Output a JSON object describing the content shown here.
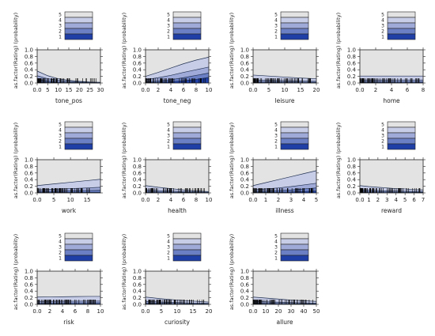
{
  "figure": {
    "ylabel": "as.factor(Rating) (probability)",
    "legend_levels": [
      "5",
      "4",
      "3",
      "2",
      "1"
    ],
    "colors": {
      "level1": "#1f3fa6",
      "level2": "#6a7fc4",
      "level3": "#9faad8",
      "level4": "#c8cde7",
      "level5": "#e3e3e3",
      "panel_bg": "#e3e3e3",
      "curve": "#203050",
      "rug": "#000000"
    }
  },
  "chart_data": [
    {
      "type": "area",
      "title": "",
      "xlabel": "tone_pos",
      "ylabel": "as.factor(Rating) (probability)",
      "xlim": [
        0,
        30
      ],
      "ylim": [
        0,
        1
      ],
      "xticks": [
        0,
        5,
        10,
        15,
        20,
        25,
        30
      ],
      "yticks": [
        0.0,
        0.2,
        0.4,
        0.6,
        0.8,
        1.0
      ],
      "x": [
        0,
        5,
        10,
        15,
        20,
        25,
        30
      ],
      "series": [
        {
          "values": [
            0.03,
            0.02,
            0.01,
            0.005,
            0.003,
            0.002,
            0.0
          ]
        },
        {
          "values": [
            0.1,
            0.06,
            0.03,
            0.02,
            0.015,
            0.01,
            0.005
          ]
        },
        {
          "values": [
            0.22,
            0.13,
            0.08,
            0.05,
            0.03,
            0.02,
            0.01
          ]
        },
        {
          "values": [
            0.36,
            0.22,
            0.13,
            0.08,
            0.05,
            0.03,
            0.02
          ]
        }
      ],
      "rug_range": [
        0,
        30
      ]
    },
    {
      "type": "area",
      "title": "",
      "xlabel": "tone_neg",
      "ylabel": "as.factor(Rating) (probability)",
      "xlim": [
        0,
        10
      ],
      "ylim": [
        0,
        1
      ],
      "xticks": [
        0,
        2,
        4,
        6,
        8,
        10
      ],
      "yticks": [
        0.0,
        0.2,
        0.4,
        0.6,
        0.8,
        1.0
      ],
      "x": [
        0,
        2,
        4,
        6,
        8,
        10
      ],
      "series": [
        {
          "values": [
            0.01,
            0.02,
            0.04,
            0.07,
            0.11,
            0.17
          ]
        },
        {
          "values": [
            0.03,
            0.06,
            0.1,
            0.16,
            0.23,
            0.3
          ]
        },
        {
          "values": [
            0.1,
            0.16,
            0.23,
            0.32,
            0.4,
            0.48
          ]
        },
        {
          "values": [
            0.2,
            0.32,
            0.45,
            0.58,
            0.69,
            0.78
          ]
        }
      ],
      "rug_range": [
        0,
        10
      ]
    },
    {
      "type": "area",
      "title": "",
      "xlabel": "leisure",
      "ylabel": "as.factor(Rating) (probability)",
      "xlim": [
        0,
        20
      ],
      "ylim": [
        0,
        1
      ],
      "xticks": [
        0,
        5,
        10,
        15,
        20
      ],
      "yticks": [
        0.0,
        0.2,
        0.4,
        0.6,
        0.8,
        1.0
      ],
      "x": [
        0,
        5,
        10,
        15,
        20
      ],
      "series": [
        {
          "values": [
            0.01,
            0.01,
            0.008,
            0.006,
            0.005
          ]
        },
        {
          "values": [
            0.04,
            0.035,
            0.03,
            0.025,
            0.02
          ]
        },
        {
          "values": [
            0.09,
            0.08,
            0.07,
            0.06,
            0.05
          ]
        },
        {
          "values": [
            0.24,
            0.21,
            0.18,
            0.15,
            0.13
          ]
        }
      ],
      "rug_range": [
        0,
        20
      ]
    },
    {
      "type": "area",
      "title": "",
      "xlabel": "home",
      "ylabel": "as.factor(Rating) (probability)",
      "xlim": [
        0,
        8
      ],
      "ylim": [
        0,
        1
      ],
      "xticks": [
        0,
        2,
        4,
        6,
        8
      ],
      "yticks": [
        0.0,
        0.2,
        0.4,
        0.6,
        0.8,
        1.0
      ],
      "x": [
        0,
        2,
        4,
        6,
        8
      ],
      "series": [
        {
          "values": [
            0.01,
            0.01,
            0.01,
            0.01,
            0.01
          ]
        },
        {
          "values": [
            0.04,
            0.04,
            0.04,
            0.04,
            0.04
          ]
        },
        {
          "values": [
            0.09,
            0.09,
            0.09,
            0.09,
            0.09
          ]
        },
        {
          "values": [
            0.21,
            0.21,
            0.21,
            0.21,
            0.21
          ]
        }
      ],
      "rug_range": [
        0,
        8
      ]
    },
    {
      "type": "area",
      "title": "",
      "xlabel": "work",
      "ylabel": "as.factor(Rating) (probability)",
      "xlim": [
        0,
        19
      ],
      "ylim": [
        0,
        1
      ],
      "xticks": [
        0,
        5,
        10,
        15
      ],
      "yticks": [
        0.0,
        0.2,
        0.4,
        0.6,
        0.8,
        1.0
      ],
      "x": [
        0,
        5,
        10,
        15,
        19
      ],
      "series": [
        {
          "values": [
            0.01,
            0.012,
            0.015,
            0.018,
            0.02
          ]
        },
        {
          "values": [
            0.04,
            0.05,
            0.06,
            0.07,
            0.08
          ]
        },
        {
          "values": [
            0.09,
            0.11,
            0.13,
            0.15,
            0.17
          ]
        },
        {
          "values": [
            0.22,
            0.27,
            0.32,
            0.37,
            0.41
          ]
        }
      ],
      "rug_range": [
        0,
        19
      ]
    },
    {
      "type": "area",
      "title": "",
      "xlabel": "health",
      "ylabel": "as.factor(Rating) (probability)",
      "xlim": [
        0,
        10
      ],
      "ylim": [
        0,
        1
      ],
      "xticks": [
        0,
        2,
        4,
        6,
        8,
        10
      ],
      "yticks": [
        0.0,
        0.2,
        0.4,
        0.6,
        0.8,
        1.0
      ],
      "x": [
        0,
        2,
        4,
        6,
        8,
        10
      ],
      "series": [
        {
          "values": [
            0.01,
            0.008,
            0.006,
            0.004,
            0.003,
            0.002
          ]
        },
        {
          "values": [
            0.04,
            0.03,
            0.025,
            0.02,
            0.015,
            0.01
          ]
        },
        {
          "values": [
            0.09,
            0.07,
            0.055,
            0.04,
            0.03,
            0.02
          ]
        },
        {
          "values": [
            0.22,
            0.17,
            0.13,
            0.09,
            0.06,
            0.04
          ]
        }
      ],
      "rug_range": [
        0,
        10
      ]
    },
    {
      "type": "area",
      "title": "",
      "xlabel": "illness",
      "ylabel": "as.factor(Rating) (probability)",
      "xlim": [
        0,
        5
      ],
      "ylim": [
        0,
        1
      ],
      "xticks": [
        0,
        1,
        2,
        3,
        4,
        5
      ],
      "yticks": [
        0.0,
        0.2,
        0.4,
        0.6,
        0.8,
        1.0
      ],
      "x": [
        0,
        1,
        2,
        3,
        4,
        5
      ],
      "series": [
        {
          "values": [
            0.01,
            0.015,
            0.02,
            0.03,
            0.04,
            0.06
          ]
        },
        {
          "values": [
            0.04,
            0.05,
            0.07,
            0.09,
            0.12,
            0.15
          ]
        },
        {
          "values": [
            0.09,
            0.12,
            0.15,
            0.19,
            0.24,
            0.29
          ]
        },
        {
          "values": [
            0.22,
            0.31,
            0.4,
            0.49,
            0.58,
            0.67
          ]
        }
      ],
      "rug_range": [
        0,
        5
      ]
    },
    {
      "type": "area",
      "title": "",
      "xlabel": "reward",
      "ylabel": "as.factor(Rating) (probability)",
      "xlim": [
        0,
        7
      ],
      "ylim": [
        0,
        1
      ],
      "xticks": [
        0,
        1,
        2,
        3,
        4,
        5,
        6,
        7
      ],
      "yticks": [
        0.0,
        0.2,
        0.4,
        0.6,
        0.8,
        1.0
      ],
      "x": [
        0,
        1,
        2,
        3,
        4,
        5,
        6,
        7
      ],
      "series": [
        {
          "values": [
            0.01,
            0.009,
            0.008,
            0.007,
            0.006,
            0.005,
            0.004,
            0.003
          ]
        },
        {
          "values": [
            0.04,
            0.035,
            0.03,
            0.028,
            0.025,
            0.022,
            0.02,
            0.018
          ]
        },
        {
          "values": [
            0.09,
            0.08,
            0.07,
            0.06,
            0.055,
            0.05,
            0.045,
            0.04
          ]
        },
        {
          "values": [
            0.22,
            0.19,
            0.17,
            0.15,
            0.13,
            0.12,
            0.1,
            0.09
          ]
        }
      ],
      "rug_range": [
        0,
        7
      ]
    },
    {
      "type": "area",
      "title": "",
      "xlabel": "risk",
      "ylabel": "as.factor(Rating) (probability)",
      "xlim": [
        0,
        10
      ],
      "ylim": [
        0,
        1
      ],
      "xticks": [
        0,
        2,
        4,
        6,
        8,
        10
      ],
      "yticks": [
        0.0,
        0.2,
        0.4,
        0.6,
        0.8,
        1.0
      ],
      "x": [
        0,
        2,
        4,
        6,
        8,
        10
      ],
      "series": [
        {
          "values": [
            0.01,
            0.01,
            0.012,
            0.012,
            0.013,
            0.013
          ]
        },
        {
          "values": [
            0.04,
            0.042,
            0.043,
            0.045,
            0.046,
            0.047
          ]
        },
        {
          "values": [
            0.09,
            0.092,
            0.095,
            0.097,
            0.1,
            0.1
          ]
        },
        {
          "values": [
            0.22,
            0.225,
            0.23,
            0.235,
            0.24,
            0.24
          ]
        }
      ],
      "rug_range": [
        0,
        10
      ]
    },
    {
      "type": "area",
      "title": "",
      "xlabel": "curiosity",
      "ylabel": "as.factor(Rating) (probability)",
      "xlim": [
        0,
        20
      ],
      "ylim": [
        0,
        1
      ],
      "xticks": [
        0,
        5,
        10,
        15,
        20
      ],
      "yticks": [
        0.0,
        0.2,
        0.4,
        0.6,
        0.8,
        1.0
      ],
      "x": [
        0,
        5,
        10,
        15,
        20
      ],
      "series": [
        {
          "values": [
            0.01,
            0.008,
            0.006,
            0.004,
            0.003
          ]
        },
        {
          "values": [
            0.04,
            0.032,
            0.025,
            0.018,
            0.013
          ]
        },
        {
          "values": [
            0.09,
            0.07,
            0.055,
            0.04,
            0.03
          ]
        },
        {
          "values": [
            0.22,
            0.17,
            0.13,
            0.1,
            0.07
          ]
        }
      ],
      "rug_range": [
        0,
        20
      ]
    },
    {
      "type": "area",
      "title": "",
      "xlabel": "allure",
      "ylabel": "as.factor(Rating) (probability)",
      "xlim": [
        0,
        50
      ],
      "ylim": [
        0,
        1
      ],
      "xticks": [
        0,
        10,
        20,
        30,
        40,
        50
      ],
      "yticks": [
        0.0,
        0.2,
        0.4,
        0.6,
        0.8,
        1.0
      ],
      "x": [
        0,
        10,
        20,
        30,
        40,
        50
      ],
      "series": [
        {
          "values": [
            0.01,
            0.008,
            0.006,
            0.005,
            0.004,
            0.003
          ]
        },
        {
          "values": [
            0.04,
            0.034,
            0.028,
            0.023,
            0.018,
            0.014
          ]
        },
        {
          "values": [
            0.09,
            0.078,
            0.066,
            0.055,
            0.045,
            0.036
          ]
        },
        {
          "values": [
            0.22,
            0.19,
            0.16,
            0.13,
            0.11,
            0.09
          ]
        }
      ],
      "rug_range": [
        0,
        50
      ]
    }
  ]
}
